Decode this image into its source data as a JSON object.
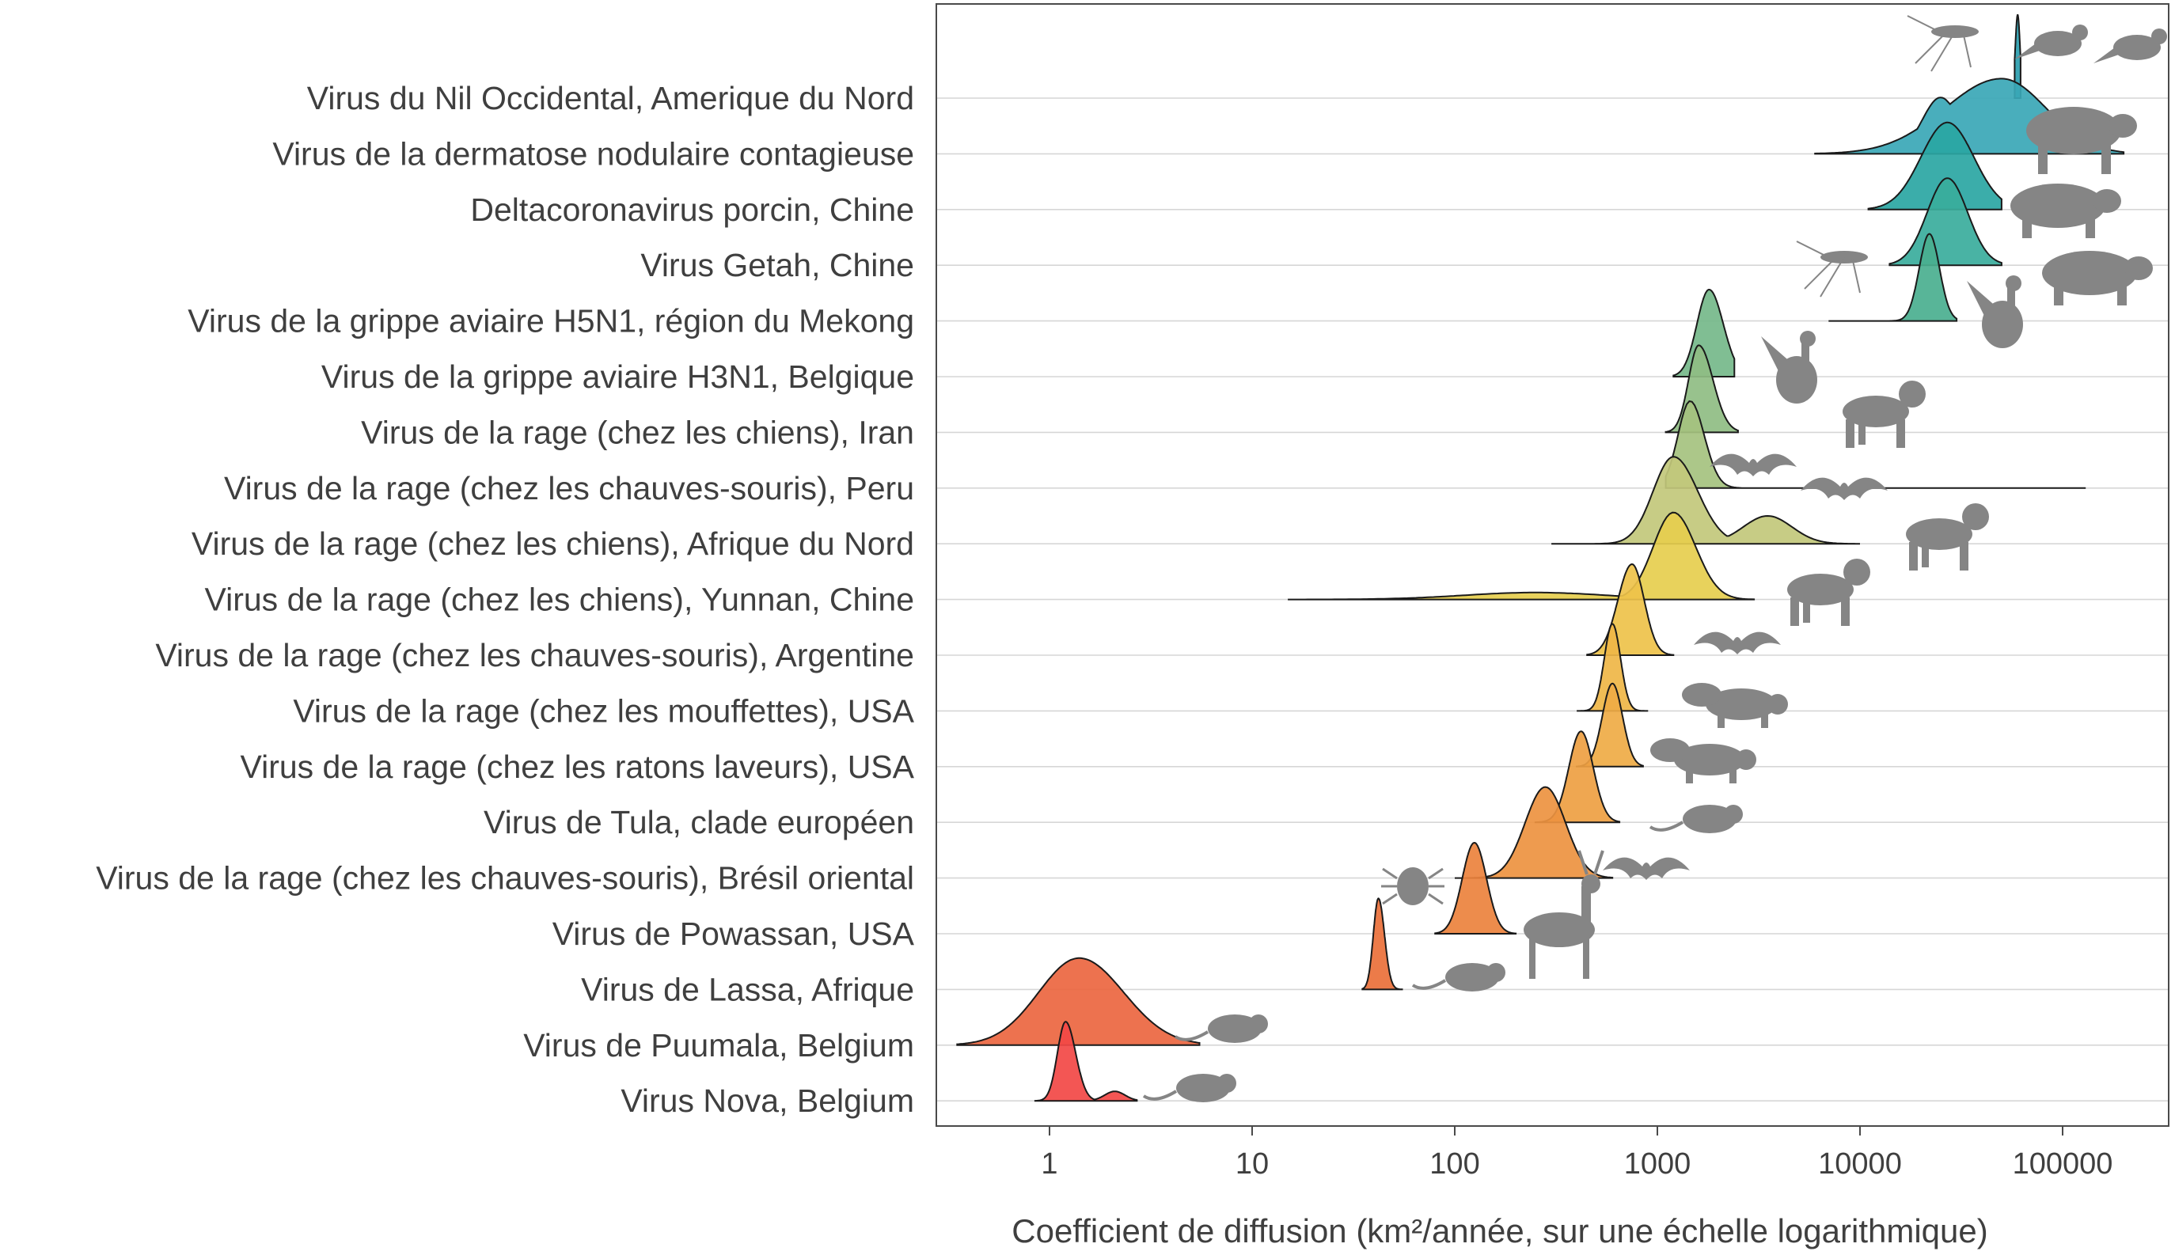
{
  "chart_data": {
    "type": "ridgeline",
    "xlabel": "Coefficient de diffusion (km²/année, sur une échelle logarithmique)",
    "x_scale": "log10",
    "xlim": [
      0.3,
      130000
    ],
    "x_ticks": [
      1,
      10,
      100,
      1000,
      10000,
      100000
    ],
    "x_tick_labels": [
      "1",
      "10",
      "100",
      "1000",
      "10000",
      "100000"
    ],
    "grid": "horizontal",
    "series": [
      {
        "name": "Virus du Nil Occidental, Amerique du Nord",
        "color": "#2b9fb0",
        "peak": 60000,
        "range": [
          58000,
          62000
        ],
        "host": "mosquito-bird"
      },
      {
        "name": "Virus de la dermatose nodulaire contagieuse",
        "color": "#3aa7b6",
        "peak": 50000,
        "range": [
          6000,
          200000
        ],
        "host": "cow"
      },
      {
        "name": "Deltacoronavirus porcin, Chine",
        "color": "#2aa6a3",
        "peak": 27000,
        "range": [
          11000,
          50000
        ],
        "host": "pig"
      },
      {
        "name": "Virus Getah, Chine",
        "color": "#3aad9c",
        "peak": 27000,
        "range": [
          14000,
          50000
        ],
        "host": "mosquito-pig"
      },
      {
        "name": "Virus de la grippe aviaire H5N1, région du Mekong",
        "color": "#4aaf8f",
        "peak": 22000,
        "range": [
          7000,
          30000
        ],
        "host": "goose"
      },
      {
        "name": "Virus de la grippe aviaire H3N1, Belgique",
        "color": "#75b88a",
        "peak": 1800,
        "range": [
          1200,
          2400
        ],
        "host": "goose"
      },
      {
        "name": "Virus de la rage (chez les chiens), Iran",
        "color": "#8fbd83",
        "peak": 1600,
        "range": [
          1100,
          2500
        ],
        "host": "dog"
      },
      {
        "name": "Virus de la rage (chez les chauves-souris), Peru",
        "color": "#a5c27f",
        "peak": 1450,
        "range": [
          1100,
          130000
        ],
        "host": "bat"
      },
      {
        "name": "Virus de la rage (chez les chiens), Afrique du Nord",
        "color": "#c2c87b",
        "peak": 1200,
        "range": [
          300,
          10000
        ],
        "host": "dog"
      },
      {
        "name": "Virus de la rage (chez les chiens), Yunnan, Chine",
        "color": "#e6ce4e",
        "peak": 1200,
        "range": [
          15,
          3000
        ],
        "host": "dog"
      },
      {
        "name": "Virus de la rage (chez les chauves-souris), Argentine",
        "color": "#eec24a",
        "peak": 750,
        "range": [
          450,
          1200
        ],
        "host": "bat"
      },
      {
        "name": "Virus de la rage (chez les mouffettes), USA",
        "color": "#efb647",
        "peak": 600,
        "range": [
          400,
          900
        ],
        "host": "skunk"
      },
      {
        "name": "Virus de la rage (chez les ratons laveurs), USA",
        "color": "#efab45",
        "peak": 600,
        "range": [
          400,
          850
        ],
        "host": "raccoon"
      },
      {
        "name": "Virus de Tula, clade européen",
        "color": "#ee9f42",
        "peak": 420,
        "range": [
          250,
          650
        ],
        "host": "vole"
      },
      {
        "name": "Virus de la rage (chez les chauves-souris), Brésil oriental",
        "color": "#ed9340",
        "peak": 280,
        "range": [
          100,
          600
        ],
        "host": "bat"
      },
      {
        "name": "Virus de Powassan, USA",
        "color": "#ec823d",
        "peak": 125,
        "range": [
          80,
          200
        ],
        "host": "tick-deer"
      },
      {
        "name": "Virus de Lassa, Afrique",
        "color": "#ea7039",
        "peak": 42,
        "range": [
          35,
          55
        ],
        "host": "rat"
      },
      {
        "name": "Virus de Puumala, Belgium",
        "color": "#ec6640",
        "peak": 1.4,
        "range": [
          0.35,
          5.5
        ],
        "host": "mouse"
      },
      {
        "name": "Virus Nova, Belgium",
        "color": "#f24845",
        "peak": 1.2,
        "range": [
          0.85,
          2.7
        ],
        "host": "mole"
      }
    ]
  }
}
